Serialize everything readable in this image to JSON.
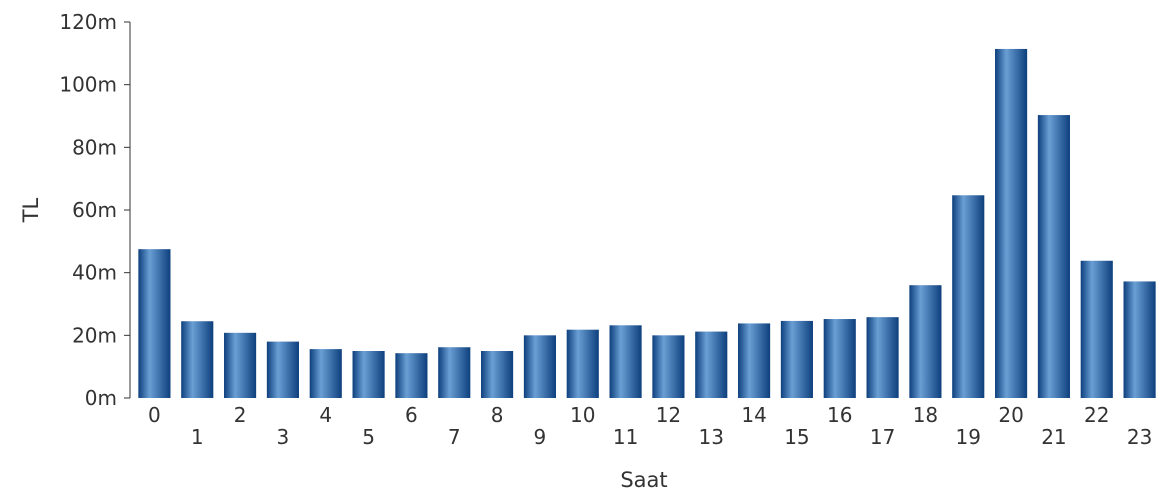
{
  "chart_data": {
    "type": "bar",
    "title": "",
    "xlabel": "Saat",
    "ylabel": "TL",
    "categories": [
      "0",
      "1",
      "2",
      "3",
      "4",
      "5",
      "6",
      "7",
      "8",
      "9",
      "10",
      "11",
      "12",
      "13",
      "14",
      "15",
      "16",
      "17",
      "18",
      "19",
      "20",
      "21",
      "22",
      "23"
    ],
    "values": [
      47500000,
      24500000,
      20800000,
      18000000,
      15600000,
      15000000,
      14300000,
      16200000,
      15000000,
      20000000,
      21800000,
      23200000,
      20000000,
      21200000,
      23800000,
      24600000,
      25200000,
      25800000,
      36000000,
      64700000,
      111400000,
      90300000,
      43800000,
      37200000
    ],
    "ylim": [
      0,
      120000000
    ],
    "yticks": [
      0,
      20000000,
      40000000,
      60000000,
      80000000,
      100000000,
      120000000
    ],
    "ytick_labels": [
      "0m",
      "20m",
      "40m",
      "60m",
      "80m",
      "100m",
      "120m"
    ],
    "grid": false,
    "legend": "none",
    "bar_color": "#1f5aa0",
    "bar_color_light": "#6a9fd4",
    "bar_color_dark": "#0d3f7d",
    "axis_color": "#333333"
  }
}
